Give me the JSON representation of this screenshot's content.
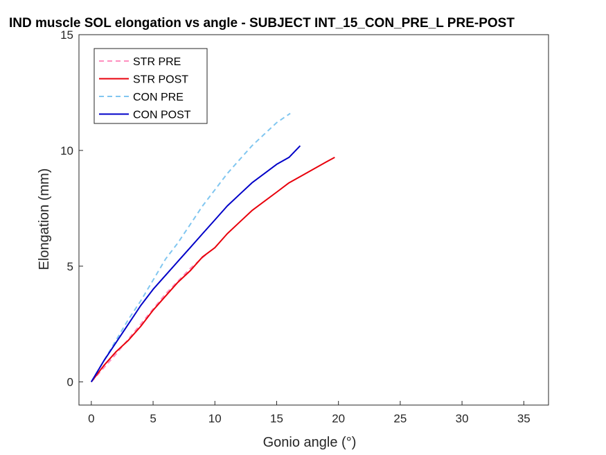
{
  "chart_data": {
    "type": "line",
    "title": "IND muscle SOL elongation vs angle - SUBJECT INT_15_CON_PRE_L PRE-POST",
    "xlabel": "Gonio angle (°)",
    "ylabel": "Elongation (mm)",
    "xlim": [
      -1,
      37
    ],
    "ylim": [
      -1,
      15
    ],
    "xticks": [
      0,
      5,
      10,
      15,
      20,
      25,
      30,
      35
    ],
    "yticks": [
      0,
      5,
      10,
      15
    ],
    "grid": false,
    "legend_position": "top-left",
    "series": [
      {
        "name": "STR PRE",
        "color": "#ff8ebf",
        "style": "dashed",
        "x": [
          0,
          2,
          4,
          6,
          8,
          9.5
        ],
        "y": [
          0,
          1.2,
          2.5,
          3.8,
          4.9,
          5.6
        ]
      },
      {
        "name": "STR POST",
        "color": "#e8000b",
        "style": "solid",
        "x": [
          0,
          1,
          2,
          3,
          4,
          5,
          6,
          7,
          8,
          9,
          10,
          11,
          12,
          13,
          14,
          15,
          16,
          17,
          18,
          19,
          19.7
        ],
        "y": [
          0,
          0.7,
          1.3,
          1.8,
          2.4,
          3.1,
          3.7,
          4.3,
          4.8,
          5.4,
          5.8,
          6.4,
          6.9,
          7.4,
          7.8,
          8.2,
          8.6,
          8.9,
          9.2,
          9.5,
          9.7
        ]
      },
      {
        "name": "CON PRE",
        "color": "#80c6f0",
        "style": "dashed",
        "x": [
          0,
          1,
          2,
          3,
          4,
          5,
          6,
          7,
          8,
          9,
          10,
          11,
          12,
          13,
          14,
          15,
          16.1
        ],
        "y": [
          0,
          0.9,
          1.8,
          2.7,
          3.5,
          4.4,
          5.3,
          6.0,
          6.8,
          7.6,
          8.3,
          9.0,
          9.6,
          10.2,
          10.7,
          11.2,
          11.6
        ]
      },
      {
        "name": "CON POST",
        "color": "#0000c8",
        "style": "solid",
        "x": [
          0,
          1,
          2,
          3,
          4,
          5,
          6,
          7,
          8,
          9,
          10,
          11,
          12,
          13,
          14,
          15,
          16,
          16.9
        ],
        "y": [
          0,
          0.9,
          1.7,
          2.5,
          3.3,
          4.0,
          4.6,
          5.2,
          5.8,
          6.4,
          7.0,
          7.6,
          8.1,
          8.6,
          9.0,
          9.4,
          9.7,
          10.2
        ]
      }
    ]
  }
}
